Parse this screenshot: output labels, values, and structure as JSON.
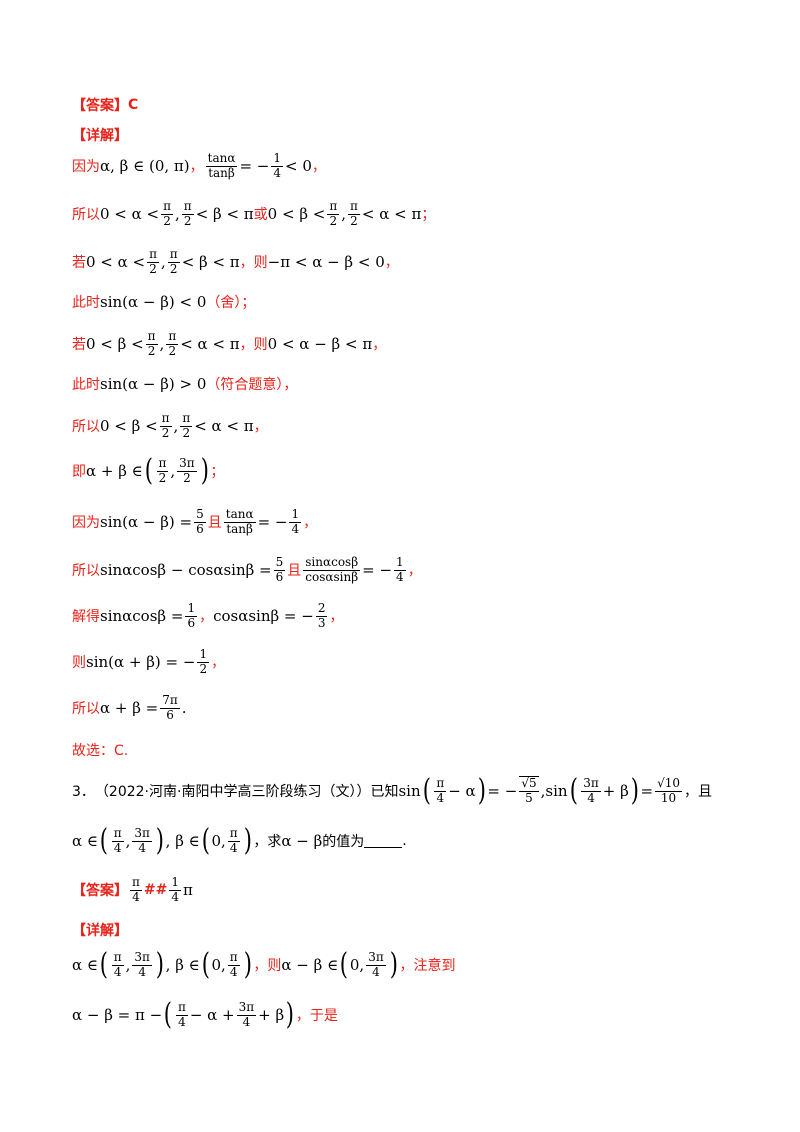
{
  "answer1": {
    "label": "【答案】",
    "value": "C"
  },
  "detail1_label": "【详解】",
  "l1": {
    "a": "因为",
    "m1": "α, β ∈ (0, π)",
    "b": "，",
    "f_num": "tanα",
    "f_den": "tanβ",
    "eq": "= −",
    "f2_num": "1",
    "f2_den": "4",
    "tail": "< 0",
    "c": "，"
  },
  "l2": {
    "a": "所以",
    "m1": "0 < α <",
    "pi": "π",
    "two": "2",
    "m2": "< β < π",
    "or": "或",
    "m3": "0 < β <",
    "m4": "< α < π",
    "c": "；"
  },
  "l3": {
    "a": "若",
    "m1": "0 < α <",
    "m2": "< β < π",
    "b": "，则",
    "m3": "−π < α − β < 0",
    "c": "，"
  },
  "l4": {
    "a": "此时",
    "m1": "sin(α − β) < 0",
    "b": "（舍）；"
  },
  "l5": {
    "a": "若",
    "m1": "0 < β <",
    "m2": "< α < π",
    "b": "，则",
    "m3": "0 < α − β < π",
    "c": "，"
  },
  "l6": {
    "a": "此时",
    "m1": "sin(α − β) > 0",
    "b": "（符合题意），"
  },
  "l7": {
    "a": "所以",
    "m1": "0 < β <",
    "m2": "< α < π",
    "c": "，"
  },
  "l8": {
    "a": "即",
    "m1": "α + β ∈",
    "pi": "π",
    "two": "2",
    "threepi": "3π",
    "c": "；"
  },
  "l9": {
    "a": "因为",
    "m1": "sin(α − β) =",
    "f_num": "5",
    "f_den": "6",
    "b": "且",
    "g_num": "tanα",
    "g_den": "tanβ",
    "eq": "= −",
    "h_num": "1",
    "h_den": "4",
    "c": "，"
  },
  "l10": {
    "a": "所以",
    "m1": "sinαcosβ − cosαsinβ =",
    "f_num": "5",
    "f_den": "6",
    "b": "且",
    "g_num": "sinαcosβ",
    "g_den": "cosαsinβ",
    "eq": "= −",
    "h_num": "1",
    "h_den": "4",
    "c": "，"
  },
  "l11": {
    "a": "解得",
    "m1": "sinαcosβ =",
    "f_num": "1",
    "f_den": "6",
    "b": "，",
    "m2": "cosαsinβ = −",
    "g_num": "2",
    "g_den": "3",
    "c": "，"
  },
  "l12": {
    "a": "则",
    "m1": "sin(α + β) = −",
    "f_num": "1",
    "f_den": "2",
    "c": "，"
  },
  "l13": {
    "a": "所以",
    "m1": "α + β =",
    "f_num": "7π",
    "f_den": "6",
    "c": "."
  },
  "l14": {
    "a": "故选：C."
  },
  "q3": {
    "num": "3．",
    "source": "（2022·河南·南阳中学高三阶段练习（文））已知",
    "sin": "sin",
    "pi": "π",
    "four": "4",
    "m_a": "− α",
    "eq1": "= −",
    "s5": "√5",
    "five": "5",
    "comma": ",",
    "threepi": "3π",
    "m_b": "+ β",
    "s10": "√10",
    "ten": "10",
    "tail": "，且"
  },
  "q3b": {
    "m1": "α ∈",
    "m2": ", β ∈",
    "zero": "0,",
    "b": "，求",
    "m3": "α − β",
    "c": "的值为",
    "d": "."
  },
  "answer2": {
    "label": "【答案】",
    "pi": "π",
    "four": "4",
    "sep": "##",
    "one": "1",
    "tailpi": "π"
  },
  "detail2_label": "【详解】",
  "l15": {
    "m1": "α ∈",
    "m2": ", β ∈",
    "zero": "0,",
    "b": "，则",
    "m3": "α − β ∈",
    "threepi": "3π",
    "c": "，注意到"
  },
  "l16": {
    "m1": "α − β = π −",
    "pi": "π",
    "four": "4",
    "m2": "− α +",
    "threepi": "3π",
    "m3": "+ β",
    "c": "，于是"
  }
}
